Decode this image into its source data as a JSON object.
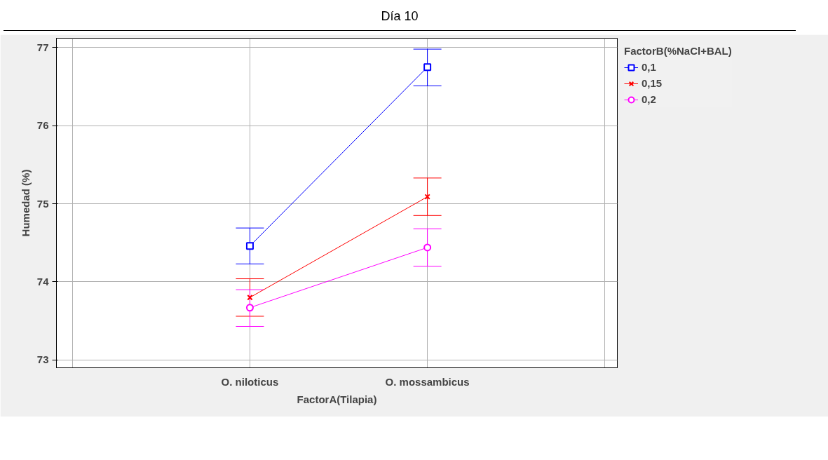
{
  "chart_data": {
    "type": "line",
    "title": "Día 10",
    "xlabel": "FactorA(Tilapia)",
    "ylabel": "Humedad (%)",
    "legend_title": "FactorB(%NaCl+BAL)",
    "categories": [
      "O. niloticus",
      "O. mossambicus"
    ],
    "series": [
      {
        "name": "0,1",
        "color": "#0000ff",
        "marker": "square",
        "values": [
          74.46,
          76.75
        ],
        "errors": [
          [
            74.23,
            74.69
          ],
          [
            76.51,
            76.98
          ]
        ]
      },
      {
        "name": "0,15",
        "color": "#ff0000",
        "marker": "cross",
        "values": [
          73.8,
          75.09
        ],
        "errors": [
          [
            73.56,
            74.04
          ],
          [
            74.85,
            75.33
          ]
        ]
      },
      {
        "name": "0,2",
        "color": "#ff00ff",
        "marker": "circle",
        "values": [
          73.67,
          74.44
        ],
        "errors": [
          [
            73.43,
            73.9
          ],
          [
            74.2,
            74.68
          ]
        ]
      }
    ],
    "ylim": [
      72.9,
      77.12
    ],
    "yticks": [
      73,
      74,
      75,
      76,
      77
    ],
    "grid": true,
    "legend": "top right"
  }
}
